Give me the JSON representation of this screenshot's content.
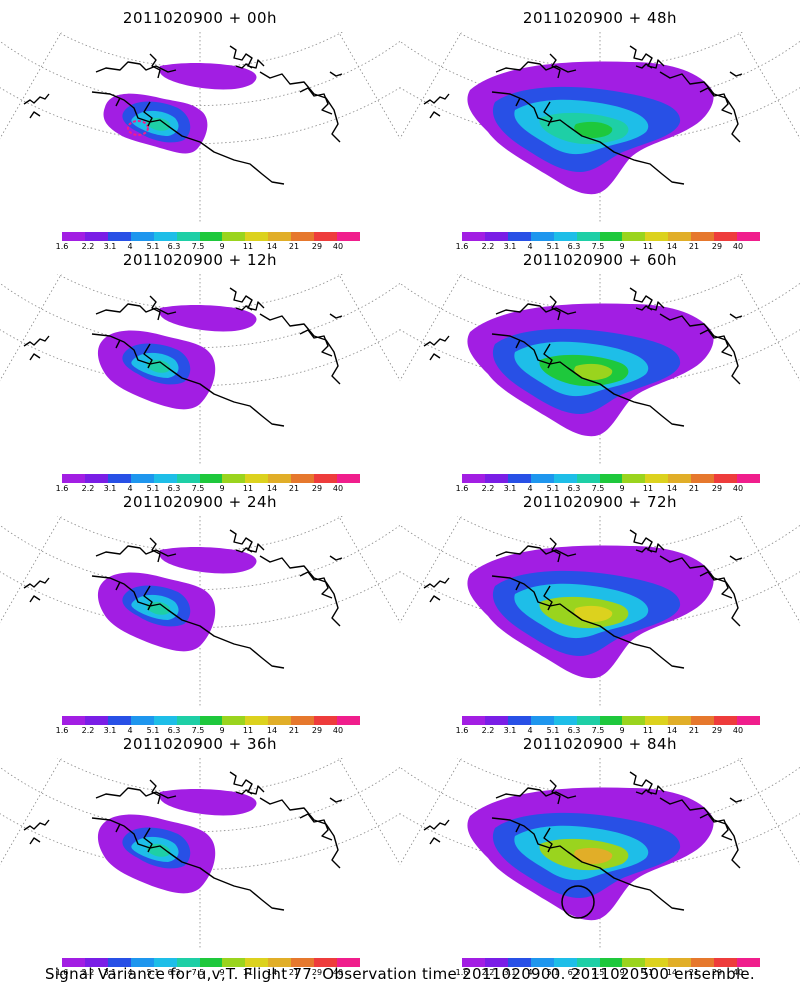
{
  "caption": "Signal Variance for u,v,T. Flight 77. Observation time 2011020900. 2011020500 ensemble.",
  "colorbar": {
    "colors": [
      "#a21ee3",
      "#7a1ee6",
      "#2850e6",
      "#1e96ee",
      "#1ebee8",
      "#1ecfa6",
      "#1ec83c",
      "#9ad41e",
      "#dcd21e",
      "#e1ae28",
      "#e6782d",
      "#ee3c3c",
      "#f01e8c"
    ],
    "labels": [
      "1.6",
      "2.2",
      "3.1",
      "4",
      "5.1",
      "6.3",
      "7.5",
      "9",
      "11",
      "14",
      "21",
      "29",
      "40"
    ]
  },
  "panels": [
    {
      "title": "2011020900 + 00h",
      "level": 0
    },
    {
      "title": "2011020900 + 48h",
      "level": 3
    },
    {
      "title": "2011020900 + 12h",
      "level": 1
    },
    {
      "title": "2011020900 + 60h",
      "level": 4
    },
    {
      "title": "2011020900 + 24h",
      "level": 2
    },
    {
      "title": "2011020900 + 72h",
      "level": 5
    },
    {
      "title": "2011020900 + 36h",
      "level": 2
    },
    {
      "title": "2011020900 + 84h",
      "level": 6
    }
  ]
}
